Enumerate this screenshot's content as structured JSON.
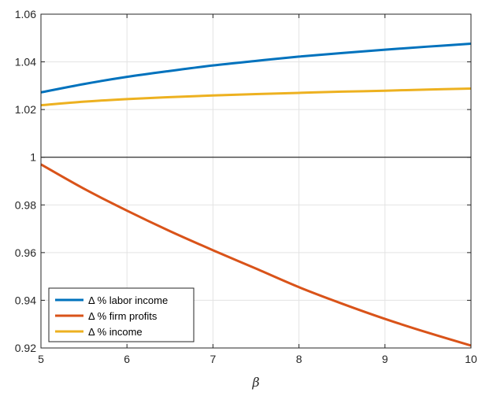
{
  "chart_data": {
    "type": "line",
    "title": "",
    "xlabel": "β",
    "ylabel": "",
    "xlim": [
      5,
      10
    ],
    "ylim": [
      0.92,
      1.06
    ],
    "xticks": [
      5,
      6,
      7,
      8,
      9,
      10
    ],
    "yticks": [
      0.92,
      0.94,
      0.96,
      0.98,
      1.0,
      1.02,
      1.04,
      1.06
    ],
    "ytick_labels": [
      "0.92",
      "0.94",
      "0.96",
      "0.98",
      "1",
      "1.02",
      "1.04",
      "1.06"
    ],
    "grid": true,
    "reference_line_y": 1.0,
    "legend_position": "bottom-left",
    "x": [
      5,
      5.5,
      6,
      6.5,
      7,
      7.5,
      8,
      8.5,
      9,
      9.5,
      10
    ],
    "series": [
      {
        "name": "Δ % labor income",
        "color": "#0072BD",
        "values": [
          1.0272,
          1.0307,
          1.0337,
          1.0362,
          1.0385,
          1.0404,
          1.0422,
          1.0437,
          1.0451,
          1.0464,
          1.0476
        ]
      },
      {
        "name": "Δ % firm profits",
        "color": "#D95319",
        "values": [
          0.997,
          0.9868,
          0.9776,
          0.969,
          0.961,
          0.9533,
          0.9455,
          0.9386,
          0.9322,
          0.9264,
          0.921
        ]
      },
      {
        "name": "Δ % income",
        "color": "#EDB120",
        "values": [
          1.0218,
          1.0233,
          1.0244,
          1.0252,
          1.0259,
          1.0265,
          1.027,
          1.0275,
          1.0279,
          1.0284,
          1.0288
        ]
      }
    ]
  }
}
